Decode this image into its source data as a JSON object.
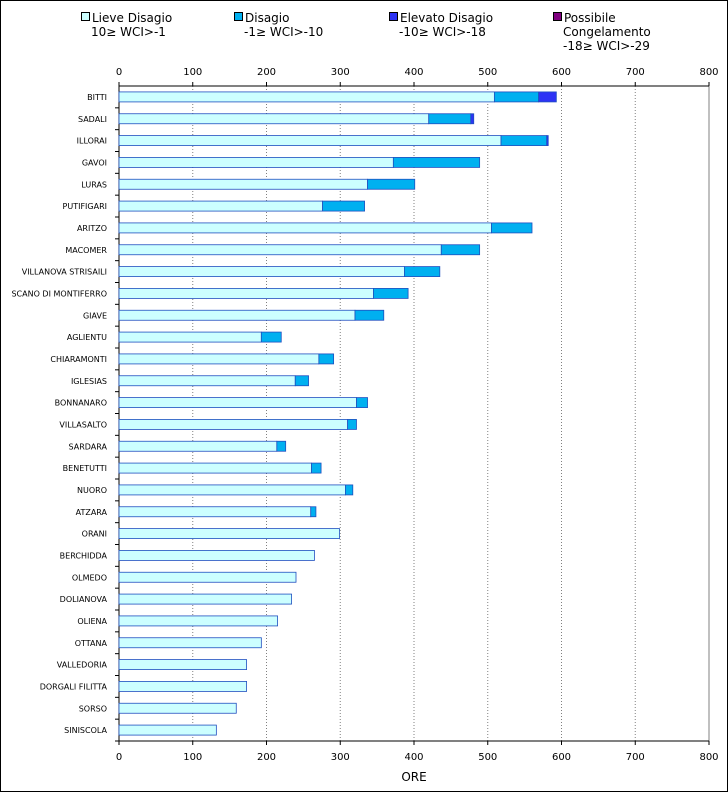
{
  "chart_data": {
    "type": "bar",
    "orientation": "horizontal",
    "stacked": true,
    "xlabel": "ORE",
    "xlim": [
      0,
      800
    ],
    "xticks": [
      0,
      100,
      200,
      300,
      400,
      500,
      600,
      700,
      800
    ],
    "categories": [
      "BITTI",
      "SADALI",
      "ILLORAI",
      "GAVOI",
      "LURAS",
      "PUTIFIGARI",
      "ARITZO",
      "MACOMER",
      "VILLANOVA STRISAILI",
      "SCANO DI MONTIFERRO",
      "GIAVE",
      "AGLIENTU",
      "CHIARAMONTI",
      "IGLESIAS",
      "BONNANARO",
      "VILLASALTO",
      "SARDARA",
      "BENETUTTI",
      "NUORO",
      "ATZARA",
      "ORANI",
      "BERCHIDDA",
      "OLMEDO",
      "DOLIANOVA",
      "OLIENA",
      "OTTANA",
      "VALLEDORIA",
      "DORGALI FILITTA",
      "SORSO",
      "SINISCOLA"
    ],
    "series": [
      {
        "name": "Lieve Disagio",
        "range": "10≥ WCI>-1",
        "color": "#ccffff",
        "values": [
          509,
          420,
          518,
          372,
          337,
          276,
          505,
          437,
          387,
          345,
          320,
          193,
          271,
          239,
          322,
          310,
          214,
          261,
          307,
          260,
          299,
          265,
          240,
          234,
          215,
          193,
          173,
          173,
          159,
          132
        ]
      },
      {
        "name": "Disagio",
        "range": "-1≥ WCI>-10",
        "color": "#00b0f0",
        "values": [
          60,
          57,
          62,
          117,
          64,
          57,
          55,
          52,
          48,
          47,
          39,
          27,
          20,
          18,
          15,
          12,
          12,
          13,
          10,
          7,
          0,
          0,
          0,
          0,
          0,
          0,
          0,
          0,
          0,
          0
        ]
      },
      {
        "name": "Elevato Disagio",
        "range": "-10≥ WCI>-18",
        "color": "#2d33f5",
        "values": [
          24,
          4,
          2,
          0,
          0,
          0,
          0,
          0,
          0,
          0,
          0,
          0,
          0,
          0,
          0,
          0,
          0,
          0,
          0,
          0,
          0,
          0,
          0,
          0,
          0,
          0,
          0,
          0,
          0,
          0
        ]
      },
      {
        "name": "Possibile Congelamento",
        "range": "-18≥ WCI>-29",
        "color": "#800080",
        "values": [
          0,
          0,
          0,
          0,
          0,
          0,
          0,
          0,
          0,
          0,
          0,
          0,
          0,
          0,
          0,
          0,
          0,
          0,
          0,
          0,
          0,
          0,
          0,
          0,
          0,
          0,
          0,
          0,
          0,
          0
        ]
      }
    ]
  },
  "legend": {
    "items": [
      {
        "label": "Lieve Disagio",
        "sub1": "10≥ WCI>-1",
        "sub2": ""
      },
      {
        "label": "Disagio",
        "sub1": "-1≥ WCI>-10",
        "sub2": ""
      },
      {
        "label": "Elevato Disagio",
        "sub1": "-10≥ WCI>-18",
        "sub2": ""
      },
      {
        "label": "Possibile",
        "sub1": "Congelamento",
        "sub2": "-18≥ WCI>-29"
      }
    ]
  }
}
